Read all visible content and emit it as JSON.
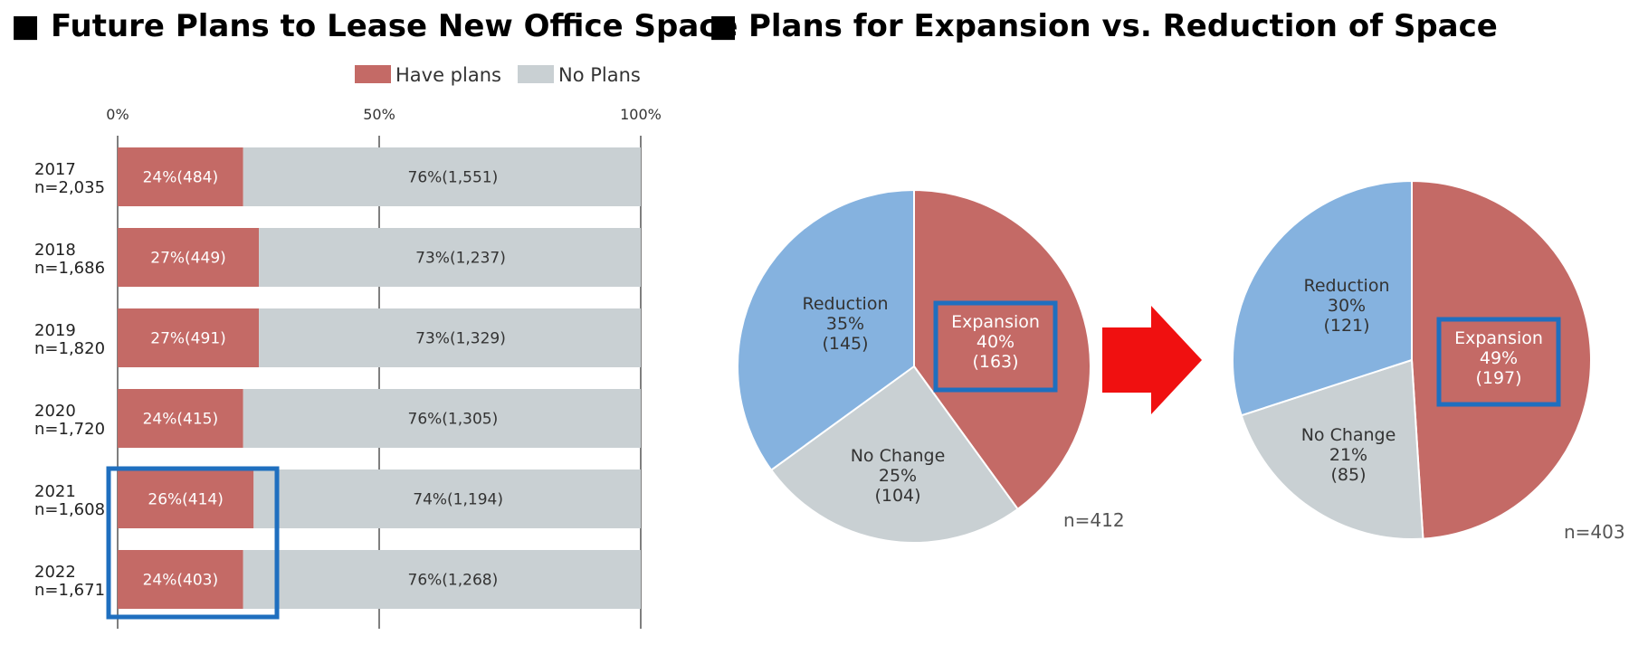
{
  "colors": {
    "have_plans": "#C46A66",
    "no_plans": "#C9D0D3",
    "expansion": "#C46A66",
    "reduction": "#85B2DF",
    "no_change": "#C9D0D3",
    "highlight": "#1F6FBF",
    "arrow": "#F01010"
  },
  "chart_data": [
    {
      "type": "bar",
      "orientation": "horizontal",
      "stacked": true,
      "title": "■ Future Plans to Lease New Office Space",
      "xlim": [
        0,
        100
      ],
      "x_ticks": [
        "0%",
        "50%",
        "100%"
      ],
      "legend": [
        "Have plans",
        "No Plans"
      ],
      "legend_position": "top-right",
      "grid": true,
      "categories": [
        {
          "year": "2017",
          "n": "n=2,035"
        },
        {
          "year": "2018",
          "n": "n=1,686"
        },
        {
          "year": "2019",
          "n": "n=1,820"
        },
        {
          "year": "2020",
          "n": "n=1,720"
        },
        {
          "year": "2021",
          "n": "n=1,608"
        },
        {
          "year": "2022",
          "n": "n=1,671"
        }
      ],
      "series": [
        {
          "name": "Have plans",
          "values": [
            24,
            27,
            27,
            24,
            26,
            24
          ],
          "labels": [
            "24%(484)",
            "27%(449)",
            "27%(491)",
            "24%(415)",
            "26%(414)",
            "24%(403)"
          ]
        },
        {
          "name": "No Plans",
          "values": [
            76,
            73,
            73,
            76,
            74,
            76
          ],
          "labels": [
            "76%(1,551)",
            "73%(1,237)",
            "73%(1,329)",
            "76%(1,305)",
            "74%(1,194)",
            "76%(1,268)"
          ]
        }
      ],
      "highlighted_categories": [
        "2021",
        "2022"
      ]
    },
    {
      "type": "pie",
      "title": "■ Plans for Expansion vs. Reduction of Space",
      "n_label": "n=412",
      "slices": [
        {
          "name": "Expansion",
          "value": 40,
          "label": [
            "Expansion",
            "40%",
            "(163)"
          ],
          "highlighted": true
        },
        {
          "name": "No Change",
          "value": 25,
          "label": [
            "No Change",
            "25%",
            "(104)"
          ]
        },
        {
          "name": "Reduction",
          "value": 35,
          "label": [
            "Reduction",
            "35%",
            "(145)"
          ]
        }
      ]
    },
    {
      "type": "pie",
      "n_label": "n=403",
      "slices": [
        {
          "name": "Expansion",
          "value": 49,
          "label": [
            "Expansion",
            "49%",
            "(197)"
          ],
          "highlighted": true
        },
        {
          "name": "No Change",
          "value": 21,
          "label": [
            "No Change",
            "21%",
            "(85)"
          ]
        },
        {
          "name": "Reduction",
          "value": 30,
          "label": [
            "Reduction",
            "30%",
            "(121)"
          ]
        }
      ]
    }
  ]
}
